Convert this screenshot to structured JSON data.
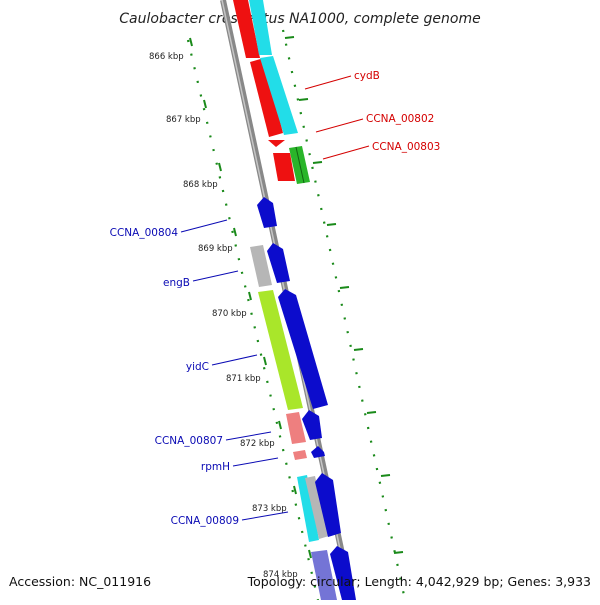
{
  "title": "Caulobacter crescentus NA1000, complete genome",
  "colors": {
    "backbone": "#8f8f8f",
    "tick": "#1a8a1a",
    "forward_label": "#d40000",
    "reverse_label": "#0a0ab4"
  },
  "ticks": [
    {
      "label": "866 kbp"
    },
    {
      "label": "867 kbp"
    },
    {
      "label": "868 kbp"
    },
    {
      "label": "869 kbp"
    },
    {
      "label": "870 kbp"
    },
    {
      "label": "871 kbp"
    },
    {
      "label": "872 kbp"
    },
    {
      "label": "873 kbp"
    },
    {
      "label": "874 kbp"
    }
  ],
  "forward_labels": [
    "cydB",
    "CCNA_00802",
    "CCNA_00803"
  ],
  "reverse_labels": [
    "CCNA_00804",
    "engB",
    "yidC",
    "CCNA_00807",
    "rpmH",
    "CCNA_00809"
  ],
  "footer": {
    "accession": "Accession: NC_011916",
    "topology": "Topology: circular; Length: 4,042,929 bp; Genes: 3,933"
  }
}
